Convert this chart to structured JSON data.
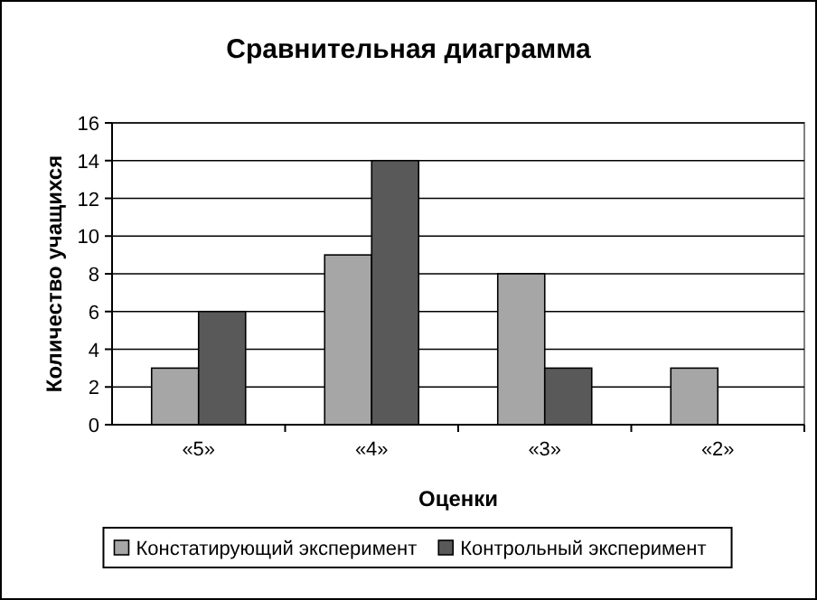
{
  "chart_data": {
    "type": "bar",
    "title": "Сравнительная диаграмма",
    "xlabel": "Оценки",
    "ylabel": "Количество учащихся",
    "categories": [
      "«5»",
      "«4»",
      "«3»",
      "«2»"
    ],
    "series": [
      {
        "name": "Констатирующий эксперимент",
        "color": "#a6a6a6",
        "values": [
          3,
          9,
          8,
          3
        ]
      },
      {
        "name": "Контрольный эксперимент",
        "color": "#595959",
        "values": [
          6,
          14,
          3,
          0
        ]
      }
    ],
    "ylim": [
      0,
      16
    ],
    "yticks": [
      0,
      2,
      4,
      6,
      8,
      10,
      12,
      14,
      16
    ],
    "grid": "y",
    "legend": "bottom"
  }
}
